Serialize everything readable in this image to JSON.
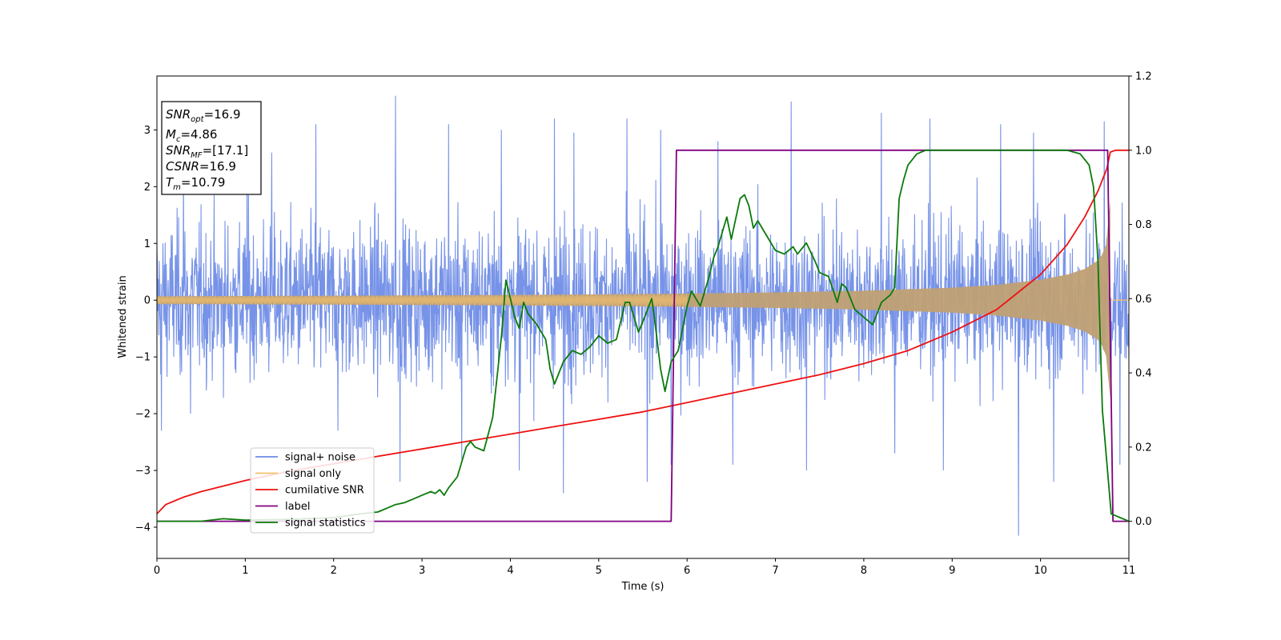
{
  "chart_data": {
    "type": "line",
    "xlabel": "Time (s)",
    "ylabel": "Whitened strain",
    "xlim": [
      0,
      11
    ],
    "ylim_left": [
      -4.55,
      3.95
    ],
    "ylim_right": [
      -0.1,
      1.2
    ],
    "x_ticks": [
      "0",
      "1",
      "2",
      "3",
      "4",
      "5",
      "6",
      "7",
      "8",
      "9",
      "10",
      "11"
    ],
    "y_ticks_left": [
      "−4",
      "−3",
      "−2",
      "−1",
      "0",
      "1",
      "2",
      "3"
    ],
    "y_ticks_right": [
      "0.0",
      "0.2",
      "0.4",
      "0.6",
      "0.8",
      "1.0",
      "1.2"
    ],
    "grid": false,
    "legend_placement": "lower-left",
    "info_box": {
      "snr_opt": {
        "name": "SNR",
        "sub": "opt",
        "value": "=16.9"
      },
      "mc": {
        "name": "M",
        "sub": "c",
        "value": "=4.86"
      },
      "snr_mf": {
        "name": "SNR",
        "sub": "MF",
        "value": "=[17.1]"
      },
      "csnr": {
        "name": "CSNR",
        "value": "=16.9"
      },
      "tm": {
        "name": "T",
        "sub": "m",
        "value": "=10.79"
      }
    },
    "series": [
      {
        "name": "signal+ noise",
        "axis": "left",
        "color": "#6b8ae6",
        "description_values": {
          "noise_sigma": 1.0,
          "peak_max": 3.6,
          "peak_min": -4.15
        },
        "peaks": [
          [
            0.05,
            -2.3
          ],
          [
            0.3,
            2.4
          ],
          [
            0.38,
            -2.0
          ],
          [
            1.02,
            2.9
          ],
          [
            1.3,
            2.6
          ],
          [
            1.8,
            3.1
          ],
          [
            2.05,
            -2.3
          ],
          [
            2.7,
            3.6
          ],
          [
            2.75,
            -3.2
          ],
          [
            3.3,
            3.1
          ],
          [
            3.45,
            -2.8
          ],
          [
            3.9,
            3.0
          ],
          [
            4.1,
            -3.0
          ],
          [
            4.5,
            3.2
          ],
          [
            4.6,
            -3.4
          ],
          [
            4.72,
            2.95
          ],
          [
            5.32,
            3.2
          ],
          [
            5.55,
            -3.2
          ],
          [
            5.7,
            3.0
          ],
          [
            5.82,
            -2.9
          ],
          [
            6.35,
            2.8
          ],
          [
            6.52,
            -2.9
          ],
          [
            7.18,
            3.5
          ],
          [
            7.35,
            -3.0
          ],
          [
            8.2,
            3.3
          ],
          [
            8.35,
            -2.7
          ],
          [
            8.75,
            3.2
          ],
          [
            8.9,
            -3.0
          ],
          [
            9.55,
            3.1
          ],
          [
            9.75,
            -4.15
          ],
          [
            9.92,
            2.95
          ],
          [
            10.15,
            -3.2
          ],
          [
            10.72,
            3.15
          ],
          [
            10.9,
            -2.9
          ]
        ]
      },
      {
        "name": "signal only",
        "axis": "left",
        "color": "#f5c26b",
        "envelope": {
          "t": [
            0,
            1,
            2,
            3,
            4,
            5,
            6,
            7,
            8,
            9,
            9.5,
            10,
            10.3,
            10.5,
            10.65,
            10.72,
            10.78,
            10.79
          ],
          "amp": [
            0.07,
            0.074,
            0.079,
            0.085,
            0.093,
            0.103,
            0.117,
            0.137,
            0.167,
            0.22,
            0.27,
            0.36,
            0.45,
            0.55,
            0.7,
            0.85,
            1.2,
            1.75
          ]
        }
      },
      {
        "name": "cumilative SNR",
        "axis": "right",
        "color": "#ee1111",
        "x": [
          0,
          0.1,
          0.3,
          0.5,
          1,
          1.5,
          2,
          2.5,
          3,
          3.5,
          4,
          4.5,
          5,
          5.5,
          6,
          6.5,
          7,
          7.5,
          8,
          8.5,
          9,
          9.5,
          10,
          10.3,
          10.5,
          10.65,
          10.75,
          10.79,
          10.85,
          11
        ],
        "values": [
          0.02,
          0.045,
          0.065,
          0.08,
          0.11,
          0.135,
          0.155,
          0.175,
          0.195,
          0.215,
          0.235,
          0.255,
          0.275,
          0.295,
          0.32,
          0.345,
          0.37,
          0.395,
          0.425,
          0.46,
          0.51,
          0.57,
          0.665,
          0.745,
          0.82,
          0.89,
          0.95,
          0.995,
          1.0,
          1.0
        ]
      },
      {
        "name": "label",
        "axis": "right",
        "color": "#800080",
        "x": [
          0,
          5.82,
          5.88,
          10.76,
          10.82,
          11
        ],
        "values": [
          0.0,
          0.0,
          1.0,
          1.0,
          0.0,
          0.0
        ]
      },
      {
        "name": "signal statistics",
        "axis": "right",
        "color": "#0a7a0a",
        "x": [
          0,
          0.5,
          0.75,
          1,
          1.5,
          2,
          2.3,
          2.5,
          2.6,
          2.7,
          2.8,
          2.9,
          3,
          3.1,
          3.15,
          3.2,
          3.25,
          3.3,
          3.4,
          3.5,
          3.55,
          3.6,
          3.7,
          3.8,
          3.9,
          3.95,
          4.0,
          4.05,
          4.1,
          4.15,
          4.2,
          4.3,
          4.4,
          4.45,
          4.5,
          4.6,
          4.7,
          4.8,
          4.9,
          5.0,
          5.1,
          5.2,
          5.3,
          5.35,
          5.45,
          5.52,
          5.6,
          5.63,
          5.7,
          5.75,
          5.82,
          5.9,
          6.0,
          6.05,
          6.15,
          6.25,
          6.3,
          6.35,
          6.45,
          6.5,
          6.6,
          6.65,
          6.7,
          6.75,
          6.8,
          6.9,
          7.0,
          7.1,
          7.2,
          7.25,
          7.35,
          7.45,
          7.5,
          7.6,
          7.7,
          7.75,
          7.8,
          7.9,
          8.0,
          8.1,
          8.15,
          8.2,
          8.25,
          8.3,
          8.35,
          8.4,
          8.45,
          8.5,
          8.6,
          8.7,
          9.0,
          9.5,
          10.0,
          10.3,
          10.45,
          10.55,
          10.6,
          10.65,
          10.7,
          10.8,
          11
        ],
        "values": [
          0.0,
          0.0,
          0.007,
          0.003,
          0.005,
          0.01,
          0.02,
          0.025,
          0.035,
          0.045,
          0.05,
          0.06,
          0.07,
          0.08,
          0.075,
          0.085,
          0.07,
          0.09,
          0.12,
          0.2,
          0.215,
          0.2,
          0.19,
          0.28,
          0.5,
          0.65,
          0.6,
          0.55,
          0.52,
          0.59,
          0.56,
          0.53,
          0.49,
          0.41,
          0.37,
          0.43,
          0.46,
          0.45,
          0.47,
          0.5,
          0.48,
          0.49,
          0.59,
          0.59,
          0.51,
          0.55,
          0.6,
          0.55,
          0.41,
          0.35,
          0.43,
          0.46,
          0.58,
          0.62,
          0.58,
          0.66,
          0.71,
          0.74,
          0.82,
          0.76,
          0.87,
          0.88,
          0.85,
          0.79,
          0.81,
          0.77,
          0.73,
          0.72,
          0.74,
          0.72,
          0.75,
          0.7,
          0.67,
          0.66,
          0.59,
          0.64,
          0.63,
          0.57,
          0.55,
          0.53,
          0.56,
          0.59,
          0.6,
          0.61,
          0.63,
          0.87,
          0.92,
          0.96,
          0.99,
          1.0,
          1.0,
          1.0,
          1.0,
          1.0,
          0.99,
          0.96,
          0.9,
          0.7,
          0.3,
          0.02,
          0.0
        ]
      }
    ]
  }
}
